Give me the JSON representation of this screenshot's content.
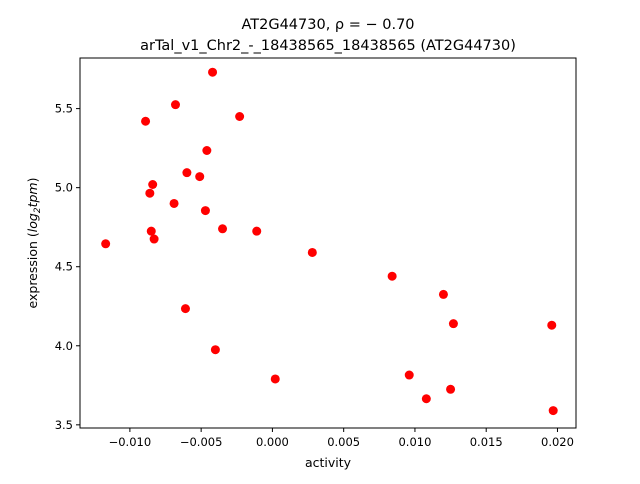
{
  "chart_data": {
    "type": "scatter",
    "title_line1": "AT2G44730, ρ = − 0.70",
    "title_line2": "arTal_v1_Chr2_-_18438565_18438565 (AT2G44730)",
    "xlabel": "activity",
    "ylabel_prefix": "expression (",
    "ylabel_math_main": "log",
    "ylabel_math_sub": "2",
    "ylabel_math_tail": "tpm",
    "ylabel_suffix": ")",
    "xlim": [
      -0.0135,
      0.0213
    ],
    "ylim": [
      3.48,
      5.82
    ],
    "x_ticks": [
      {
        "value": -0.01,
        "label": "−0.010"
      },
      {
        "value": -0.005,
        "label": "−0.005"
      },
      {
        "value": 0.0,
        "label": "0.000"
      },
      {
        "value": 0.005,
        "label": "0.005"
      },
      {
        "value": 0.01,
        "label": "0.010"
      },
      {
        "value": 0.015,
        "label": "0.015"
      },
      {
        "value": 0.02,
        "label": "0.020"
      }
    ],
    "y_ticks": [
      {
        "value": 3.5,
        "label": "3.5"
      },
      {
        "value": 4.0,
        "label": "4.0"
      },
      {
        "value": 4.5,
        "label": "4.5"
      },
      {
        "value": 5.0,
        "label": "5.0"
      },
      {
        "value": 5.5,
        "label": "5.5"
      }
    ],
    "grid": false,
    "marker_color": "#ff0000",
    "points": [
      {
        "x": -0.0117,
        "y": 4.645
      },
      {
        "x": -0.0089,
        "y": 5.42
      },
      {
        "x": -0.0086,
        "y": 4.965
      },
      {
        "x": -0.0085,
        "y": 4.725
      },
      {
        "x": -0.0084,
        "y": 5.02
      },
      {
        "x": -0.0083,
        "y": 4.675
      },
      {
        "x": -0.0069,
        "y": 4.9
      },
      {
        "x": -0.0068,
        "y": 5.525
      },
      {
        "x": -0.0061,
        "y": 4.235
      },
      {
        "x": -0.006,
        "y": 5.095
      },
      {
        "x": -0.0051,
        "y": 5.07
      },
      {
        "x": -0.0047,
        "y": 4.855
      },
      {
        "x": -0.0046,
        "y": 5.235
      },
      {
        "x": -0.0042,
        "y": 5.73
      },
      {
        "x": -0.004,
        "y": 3.975
      },
      {
        "x": -0.0035,
        "y": 4.74
      },
      {
        "x": -0.0023,
        "y": 5.45
      },
      {
        "x": -0.0011,
        "y": 4.725
      },
      {
        "x": 0.0002,
        "y": 3.79
      },
      {
        "x": 0.0028,
        "y": 4.59
      },
      {
        "x": 0.0084,
        "y": 4.44
      },
      {
        "x": 0.0096,
        "y": 3.815
      },
      {
        "x": 0.0108,
        "y": 3.665
      },
      {
        "x": 0.012,
        "y": 4.325
      },
      {
        "x": 0.0125,
        "y": 3.725
      },
      {
        "x": 0.0127,
        "y": 4.14
      },
      {
        "x": 0.0196,
        "y": 4.13
      },
      {
        "x": 0.0197,
        "y": 3.59
      }
    ]
  }
}
